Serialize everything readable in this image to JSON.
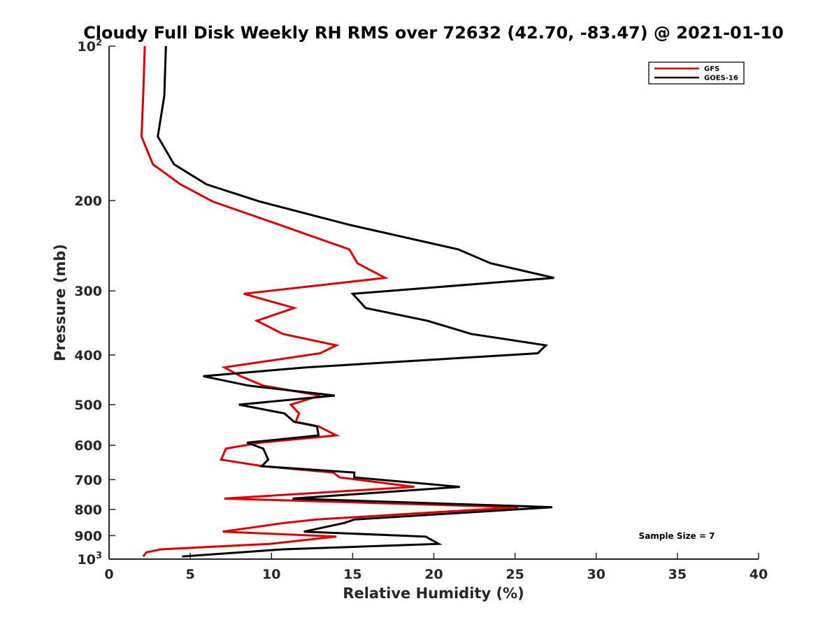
{
  "chart_data": {
    "type": "line",
    "title": "Cloudy Full Disk Weekly RH RMS over 72632 (42.70, -83.47) @ 2021-01-10",
    "xlabel": "Relative Humidity (%)",
    "ylabel": "Pressure (mb)",
    "xlim": [
      0,
      40
    ],
    "ylim": [
      100,
      1000
    ],
    "y_scale": "log",
    "y_reversed": true,
    "x_ticks": [
      "0",
      "5",
      "10",
      "15",
      "20",
      "25",
      "30",
      "35",
      "40"
    ],
    "y_ticks": [
      {
        "value": 100,
        "base": "10",
        "exp": "2"
      },
      {
        "value": 200,
        "label": "200"
      },
      {
        "value": 300,
        "label": "300"
      },
      {
        "value": 400,
        "label": "400"
      },
      {
        "value": 500,
        "label": "500"
      },
      {
        "value": 600,
        "label": "600"
      },
      {
        "value": 700,
        "label": "700"
      },
      {
        "value": 800,
        "label": "800"
      },
      {
        "value": 900,
        "label": "900"
      },
      {
        "value": 1000,
        "base": "10",
        "exp": "3"
      }
    ],
    "grid": false,
    "legend_position": "top-right",
    "annotation": "Sample Size = 7",
    "series": [
      {
        "name": "GFS",
        "color": "#e00000",
        "points": [
          [
            2.2,
            100
          ],
          [
            2.1,
            125
          ],
          [
            2.0,
            150
          ],
          [
            2.7,
            170
          ],
          [
            4.4,
            186
          ],
          [
            6.4,
            201
          ],
          [
            10.5,
            223
          ],
          [
            14.8,
            249
          ],
          [
            15.3,
            265
          ],
          [
            17.0,
            283
          ],
          [
            8.3,
            304
          ],
          [
            11.4,
            324
          ],
          [
            9.1,
            343
          ],
          [
            10.7,
            364
          ],
          [
            14.0,
            383
          ],
          [
            13.0,
            397
          ],
          [
            7.1,
            423
          ],
          [
            8.1,
            440
          ],
          [
            9.5,
            459
          ],
          [
            13.0,
            480
          ],
          [
            11.2,
            500
          ],
          [
            11.7,
            520
          ],
          [
            11.5,
            540
          ],
          [
            12.9,
            551
          ],
          [
            14.0,
            574
          ],
          [
            9.3,
            593
          ],
          [
            7.2,
            609
          ],
          [
            6.9,
            640
          ],
          [
            9.5,
            659
          ],
          [
            13.8,
            678
          ],
          [
            14.2,
            693
          ],
          [
            18.8,
            723
          ],
          [
            7.1,
            762
          ],
          [
            25.2,
            792
          ],
          [
            12.8,
            837
          ],
          [
            10.8,
            850
          ],
          [
            7.0,
            884
          ],
          [
            14.0,
            904
          ],
          [
            9.9,
            934
          ],
          [
            3.2,
            957
          ],
          [
            2.3,
            970
          ],
          [
            2.1,
            988
          ]
        ]
      },
      {
        "name": "GOES-16",
        "color": "#000000",
        "points": [
          [
            3.5,
            100
          ],
          [
            3.4,
            125
          ],
          [
            3.0,
            150
          ],
          [
            4.0,
            170
          ],
          [
            6.0,
            186
          ],
          [
            9.3,
            201
          ],
          [
            14.8,
            223
          ],
          [
            21.5,
            249
          ],
          [
            23.5,
            265
          ],
          [
            27.4,
            283
          ],
          [
            15.0,
            304
          ],
          [
            15.8,
            324
          ],
          [
            19.6,
            343
          ],
          [
            22.3,
            364
          ],
          [
            26.9,
            383
          ],
          [
            26.4,
            397
          ],
          [
            12.1,
            423
          ],
          [
            5.8,
            440
          ],
          [
            8.6,
            459
          ],
          [
            13.9,
            480
          ],
          [
            8.0,
            500
          ],
          [
            10.8,
            520
          ],
          [
            11.4,
            540
          ],
          [
            12.8,
            551
          ],
          [
            12.9,
            574
          ],
          [
            8.5,
            593
          ],
          [
            9.5,
            609
          ],
          [
            9.8,
            640
          ],
          [
            9.4,
            659
          ],
          [
            15.1,
            678
          ],
          [
            15.1,
            693
          ],
          [
            21.6,
            723
          ],
          [
            11.3,
            762
          ],
          [
            27.3,
            792
          ],
          [
            15.1,
            837
          ],
          [
            14.5,
            850
          ],
          [
            12.0,
            884
          ],
          [
            19.5,
            904
          ],
          [
            20.3,
            934
          ],
          [
            10.7,
            957
          ],
          [
            4.5,
            988
          ]
        ]
      }
    ]
  }
}
